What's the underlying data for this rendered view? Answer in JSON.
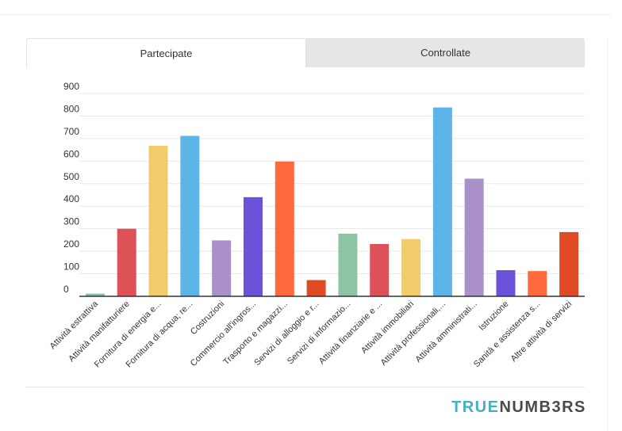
{
  "tabs": [
    {
      "label": "Partecipate",
      "active": true
    },
    {
      "label": "Controllate",
      "active": false
    }
  ],
  "brand": {
    "part1": "TRUE",
    "part2": "NUMB3RS"
  },
  "chart_data": {
    "type": "bar",
    "title": "",
    "xlabel": "",
    "ylabel": "",
    "ylim": [
      0,
      900
    ],
    "yticks": [
      0,
      100,
      200,
      300,
      400,
      500,
      600,
      700,
      800,
      900
    ],
    "grid": true,
    "legend": "none",
    "categories": [
      "Attività estrattiva",
      "Attività manifatturiere",
      "Fornitura di energia e...",
      "Fornitura di acqua; re...",
      "Costruzioni",
      "Commercio all'ingros...",
      "Trasporto e magazzi...",
      "Servizi di alloggio e r...",
      "Servizi di informazio...",
      "Attività finanziarie e ...",
      "Attività immobiliari",
      "Attività professionali,...",
      "Attività amministrati...",
      "Istruzione",
      "Sanità e assistenza s...",
      "Altre attività di servizi"
    ],
    "values": [
      12,
      300,
      668,
      712,
      248,
      440,
      598,
      72,
      278,
      232,
      254,
      838,
      522,
      116,
      112,
      285
    ],
    "colors": [
      "#86c2a3",
      "#dd5258",
      "#f0cc6a",
      "#5cb5e6",
      "#a990c9",
      "#6c52d8",
      "#ff6a3d",
      "#e04a25",
      "#8dc5a4",
      "#dd5258",
      "#f0cc6a",
      "#5cb5e6",
      "#a990c9",
      "#6c52d8",
      "#ff6a3d",
      "#e04a25"
    ]
  }
}
